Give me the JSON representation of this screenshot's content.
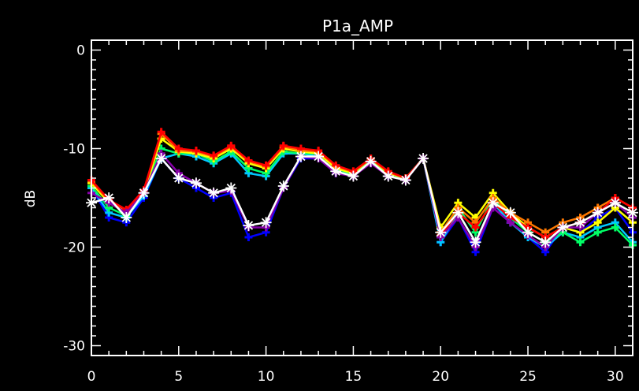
{
  "chart_data": {
    "type": "line",
    "title": "P1a_AMP",
    "xlabel": "",
    "ylabel": "dB",
    "xlim": [
      0,
      31
    ],
    "ylim": [
      -31,
      1
    ],
    "x_ticks": [
      0,
      5,
      10,
      15,
      20,
      25,
      30
    ],
    "y_ticks": [
      0,
      -10,
      -20,
      -30
    ],
    "grid": false,
    "background": "#000000",
    "axis_color": "#ffffff",
    "x": [
      0,
      1,
      2,
      3,
      4,
      5,
      6,
      7,
      8,
      9,
      10,
      11,
      12,
      13,
      14,
      15,
      16,
      17,
      18,
      19,
      20,
      21,
      22,
      23,
      24,
      25,
      26,
      27,
      28,
      29,
      30,
      31
    ],
    "series": [
      {
        "color": "#0000ff",
        "marker": "plus",
        "values": [
          -14.0,
          -17.0,
          -17.5,
          -15.0,
          -11.0,
          -13.0,
          -14.0,
          -15.0,
          -14.5,
          -19.0,
          -18.5,
          -14.0,
          -11.0,
          -11.0,
          -12.5,
          -12.5,
          -11.5,
          -12.5,
          -13.0,
          -11.0,
          -19.5,
          -17.0,
          -20.5,
          -16.0,
          -17.5,
          -19.0,
          -20.5,
          -18.0,
          -18.5,
          -17.0,
          -16.0,
          -18.5
        ]
      },
      {
        "color": "#00c8ff",
        "marker": "plus",
        "values": [
          -14.0,
          -16.5,
          -17.0,
          -14.8,
          -11.0,
          -10.5,
          -10.8,
          -11.5,
          -10.5,
          -12.5,
          -12.8,
          -10.5,
          -10.5,
          -10.8,
          -12.3,
          -12.8,
          -11.3,
          -12.8,
          -13.0,
          -11.0,
          -19.5,
          -16.5,
          -19.5,
          -15.5,
          -17.5,
          -19.0,
          -20.0,
          -18.5,
          -19.0,
          -18.0,
          -17.5,
          -19.5
        ]
      },
      {
        "color": "#00ff66",
        "marker": "plus",
        "values": [
          -13.8,
          -16.0,
          -16.8,
          -14.5,
          -10.0,
          -10.5,
          -10.5,
          -11.3,
          -10.3,
          -12.0,
          -12.5,
          -10.3,
          -10.5,
          -10.5,
          -12.0,
          -12.7,
          -11.2,
          -12.6,
          -13.0,
          -11.0,
          -19.0,
          -16.0,
          -18.5,
          -15.0,
          -17.0,
          -18.5,
          -19.5,
          -18.5,
          -19.5,
          -18.5,
          -18.0,
          -19.8
        ]
      },
      {
        "color": "#ffff00",
        "marker": "plus",
        "values": [
          -13.5,
          -15.5,
          -16.5,
          -14.5,
          -9.0,
          -10.3,
          -10.5,
          -11.0,
          -10.0,
          -11.5,
          -12.0,
          -10.0,
          -10.3,
          -10.5,
          -12.0,
          -12.5,
          -11.0,
          -12.5,
          -13.0,
          -11.0,
          -18.0,
          -15.5,
          -17.0,
          -14.5,
          -16.5,
          -18.0,
          -19.0,
          -18.0,
          -18.5,
          -17.5,
          -16.0,
          -17.5
        ]
      },
      {
        "color": "#ff7800",
        "marker": "plus",
        "values": [
          -13.3,
          -15.3,
          -16.3,
          -14.3,
          -8.5,
          -10.2,
          -10.3,
          -10.8,
          -9.8,
          -11.3,
          -11.8,
          -9.8,
          -10.2,
          -10.3,
          -11.8,
          -12.4,
          -11.0,
          -12.4,
          -13.0,
          -11.0,
          -18.5,
          -16.0,
          -17.5,
          -15.0,
          -16.5,
          -17.5,
          -18.5,
          -17.5,
          -17.0,
          -16.0,
          -15.0,
          -16.0
        ]
      },
      {
        "color": "#ff0000",
        "marker": "plus",
        "values": [
          -13.2,
          -15.2,
          -16.2,
          -14.2,
          -8.3,
          -10.0,
          -10.2,
          -10.7,
          -9.7,
          -11.2,
          -11.7,
          -9.7,
          -10.0,
          -10.2,
          -11.7,
          -12.3,
          -11.0,
          -12.3,
          -13.0,
          -11.0,
          -18.8,
          -16.5,
          -18.0,
          -15.5,
          -17.0,
          -18.0,
          -19.0,
          -18.0,
          -17.5,
          -16.5,
          -15.0,
          -16.0
        ]
      },
      {
        "color": "#8800aa",
        "marker": "plus",
        "values": [
          -14.5,
          -15.5,
          -16.5,
          -14.5,
          -10.5,
          -12.5,
          -13.5,
          -14.5,
          -14.3,
          -18.0,
          -18.0,
          -14.0,
          -10.8,
          -11.0,
          -12.5,
          -12.8,
          -11.5,
          -12.8,
          -13.2,
          -11.0,
          -19.0,
          -17.0,
          -20.0,
          -16.0,
          -17.5,
          -18.8,
          -20.0,
          -18.0,
          -18.0,
          -16.5,
          -15.5,
          -17.0
        ]
      },
      {
        "color": "#ffffff",
        "marker": "asterisk",
        "values": [
          -15.5,
          -15.0,
          -17.0,
          -14.5,
          -11.0,
          -13.0,
          -13.5,
          -14.5,
          -14.0,
          -17.8,
          -17.5,
          -13.8,
          -10.8,
          -10.8,
          -12.3,
          -12.8,
          -11.3,
          -12.8,
          -13.2,
          -11.0,
          -18.5,
          -16.5,
          -19.5,
          -15.5,
          -16.5,
          -18.5,
          -19.5,
          -18.0,
          -17.5,
          -16.5,
          -15.5,
          -16.5
        ]
      }
    ]
  }
}
